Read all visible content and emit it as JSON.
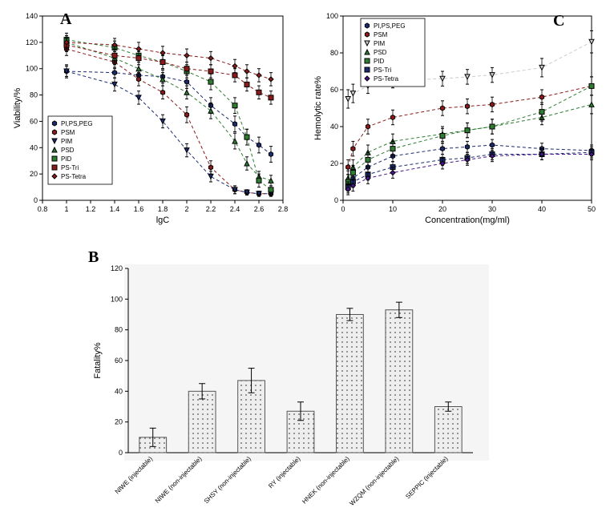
{
  "panelA": {
    "label": "A",
    "type": "scatter-line",
    "xlabel": "lgC",
    "ylabel": "Viability/%",
    "xlim": [
      0.8,
      2.8
    ],
    "ylim": [
      0,
      140
    ],
    "xticks": [
      0.8,
      1.0,
      1.2,
      1.4,
      1.6,
      1.8,
      2.0,
      2.2,
      2.4,
      2.6,
      2.8
    ],
    "yticks": [
      0,
      20,
      40,
      60,
      80,
      100,
      120,
      140
    ],
    "grid_color": "#ffffff",
    "line_dash": "4,3",
    "series": [
      {
        "name": "PI,PS,PEG",
        "marker": "hexagon",
        "color": "#1a2b6d",
        "x": [
          1.0,
          1.4,
          1.6,
          1.8,
          2.0,
          2.2,
          2.4,
          2.5,
          2.6,
          2.7
        ],
        "y": [
          98,
          97,
          95,
          94,
          90,
          72,
          58,
          48,
          42,
          35
        ],
        "err": [
          4,
          4,
          4,
          5,
          5,
          6,
          6,
          6,
          6,
          6
        ]
      },
      {
        "name": "PSM",
        "marker": "hexagon",
        "color": "#8b1a1a",
        "x": [
          1.0,
          1.4,
          1.6,
          1.8,
          2.0,
          2.2,
          2.4,
          2.5,
          2.6,
          2.7
        ],
        "y": [
          115,
          105,
          92,
          82,
          65,
          25,
          8,
          6,
          5,
          5
        ],
        "err": [
          5,
          5,
          5,
          5,
          6,
          5,
          3,
          2,
          2,
          2
        ]
      },
      {
        "name": "PIM",
        "marker": "triangle-down",
        "color": "#1a2b6d",
        "x": [
          1.0,
          1.4,
          1.6,
          1.8,
          2.0,
          2.2,
          2.4,
          2.5,
          2.6,
          2.7
        ],
        "y": [
          98,
          88,
          78,
          60,
          38,
          18,
          8,
          6,
          5,
          5
        ],
        "err": [
          5,
          5,
          5,
          5,
          5,
          4,
          3,
          2,
          2,
          2
        ]
      },
      {
        "name": "PSD",
        "marker": "triangle-up",
        "color": "#2e7d32",
        "x": [
          1.0,
          1.4,
          1.6,
          1.8,
          2.0,
          2.2,
          2.4,
          2.5,
          2.6,
          2.7
        ],
        "y": [
          120,
          108,
          100,
          92,
          82,
          68,
          45,
          28,
          18,
          15
        ],
        "err": [
          5,
          5,
          5,
          5,
          5,
          6,
          6,
          5,
          4,
          4
        ]
      },
      {
        "name": "PID",
        "marker": "square",
        "color": "#2e7d32",
        "x": [
          1.0,
          1.4,
          1.6,
          1.8,
          2.0,
          2.2,
          2.4,
          2.5,
          2.6,
          2.7
        ],
        "y": [
          122,
          116,
          110,
          105,
          98,
          90,
          72,
          48,
          15,
          8
        ],
        "err": [
          5,
          5,
          5,
          5,
          5,
          6,
          6,
          6,
          5,
          3
        ]
      },
      {
        "name": "PS-Tri",
        "marker": "square",
        "color": "#8b1a1a",
        "x": [
          1.0,
          1.4,
          1.6,
          1.8,
          2.0,
          2.2,
          2.4,
          2.5,
          2.6,
          2.7
        ],
        "y": [
          118,
          110,
          108,
          105,
          100,
          98,
          95,
          88,
          82,
          78
        ],
        "err": [
          5,
          5,
          5,
          5,
          5,
          5,
          5,
          5,
          5,
          5
        ]
      },
      {
        "name": "PS-Tetra",
        "marker": "diamond",
        "color": "#8b1a1a",
        "x": [
          1.0,
          1.4,
          1.6,
          1.8,
          2.0,
          2.2,
          2.4,
          2.5,
          2.6,
          2.7
        ],
        "y": [
          120,
          118,
          115,
          112,
          110,
          108,
          102,
          98,
          95,
          92
        ],
        "err": [
          5,
          5,
          5,
          5,
          5,
          5,
          5,
          5,
          5,
          5
        ]
      }
    ]
  },
  "panelB": {
    "label": "B",
    "type": "bar",
    "ylabel": "Fatality%",
    "ylim": [
      0,
      120
    ],
    "yticks": [
      0,
      20,
      40,
      60,
      80,
      100,
      120
    ],
    "bar_fill": "#e8e8e8",
    "bar_stroke": "#666",
    "pattern": "dots",
    "background": "#f5f5f5",
    "categories": [
      "NIWE (injectable)",
      "NIWE (non-injectable)",
      "SHSY (non-injectable)",
      "RY (injectable)",
      "HNEK (non-injectable)",
      "WZQM (non-injectable)",
      "SEPPIC (injectable)"
    ],
    "values": [
      10,
      40,
      47,
      27,
      90,
      93,
      30
    ],
    "errors": [
      6,
      5,
      8,
      6,
      4,
      5,
      3
    ]
  },
  "panelC": {
    "label": "C",
    "type": "scatter-line",
    "xlabel": "Concentration(mg/ml)",
    "ylabel": "Hemolytic rate%",
    "xlim": [
      0,
      50
    ],
    "ylim": [
      0,
      100
    ],
    "xticks": [
      0,
      10,
      20,
      30,
      40,
      50
    ],
    "yticks": [
      0,
      20,
      40,
      60,
      80,
      100
    ],
    "line_dash": "4,3",
    "series": [
      {
        "name": "PI,PS,PEG",
        "marker": "hexagon",
        "color": "#1a2b6d",
        "x": [
          1,
          2,
          5,
          10,
          20,
          25,
          30,
          40,
          50
        ],
        "y": [
          8,
          12,
          18,
          24,
          28,
          29,
          30,
          28,
          27
        ],
        "err": [
          3,
          3,
          3,
          3,
          3,
          3,
          3,
          3,
          3
        ]
      },
      {
        "name": "PSM",
        "marker": "hexagon",
        "color": "#8b1a1a",
        "x": [
          1,
          2,
          5,
          10,
          20,
          25,
          30,
          40,
          50
        ],
        "y": [
          18,
          28,
          40,
          45,
          50,
          51,
          52,
          56,
          62
        ],
        "err": [
          4,
          4,
          4,
          4,
          4,
          4,
          4,
          4,
          5
        ]
      },
      {
        "name": "PIM",
        "marker": "triangle-down",
        "color": "#cccccc",
        "x": [
          1,
          2,
          5,
          10,
          20,
          25,
          30,
          40,
          50
        ],
        "y": [
          55,
          58,
          62,
          65,
          66,
          67,
          68,
          72,
          86
        ],
        "err": [
          5,
          5,
          4,
          4,
          4,
          4,
          4,
          5,
          6
        ]
      },
      {
        "name": "PSD",
        "marker": "triangle-up",
        "color": "#2e7d32",
        "x": [
          1,
          2,
          5,
          10,
          20,
          25,
          30,
          40,
          50
        ],
        "y": [
          12,
          18,
          26,
          32,
          36,
          38,
          40,
          45,
          52
        ],
        "err": [
          4,
          4,
          4,
          4,
          4,
          4,
          4,
          4,
          5
        ]
      },
      {
        "name": "PID",
        "marker": "square",
        "color": "#2e7d32",
        "x": [
          1,
          2,
          5,
          10,
          20,
          25,
          30,
          40,
          50
        ],
        "y": [
          10,
          15,
          22,
          28,
          35,
          38,
          40,
          48,
          62
        ],
        "err": [
          4,
          4,
          4,
          4,
          4,
          4,
          4,
          5,
          5
        ]
      },
      {
        "name": "PS-Tri",
        "marker": "square",
        "color": "#1a2b6d",
        "x": [
          1,
          2,
          5,
          10,
          20,
          25,
          30,
          40,
          50
        ],
        "y": [
          7,
          10,
          14,
          18,
          22,
          23,
          25,
          25,
          26
        ],
        "err": [
          3,
          3,
          3,
          3,
          3,
          3,
          3,
          3,
          3
        ]
      },
      {
        "name": "PS-Tetra",
        "marker": "diamond",
        "color": "#4a148c",
        "x": [
          1,
          2,
          5,
          10,
          20,
          25,
          30,
          40,
          50
        ],
        "y": [
          6,
          8,
          12,
          15,
          20,
          22,
          24,
          25,
          25
        ],
        "err": [
          3,
          3,
          3,
          3,
          3,
          3,
          3,
          3,
          3
        ]
      }
    ]
  }
}
